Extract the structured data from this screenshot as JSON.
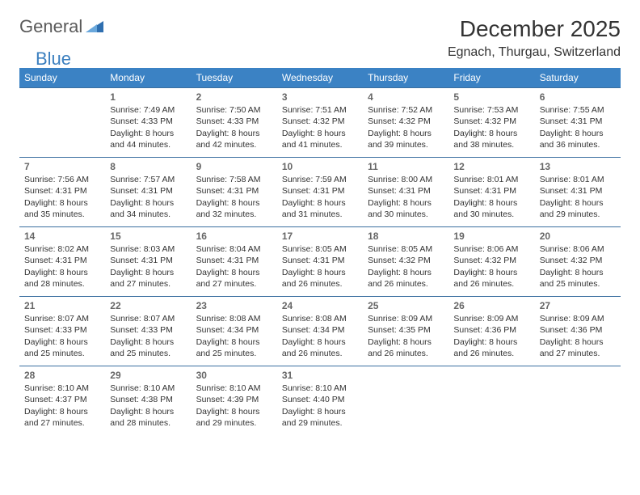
{
  "logo": {
    "part1": "General",
    "part2": "Blue"
  },
  "title": "December 2025",
  "location": "Egnach, Thurgau, Switzerland",
  "colors": {
    "header_bg": "#3b82c4",
    "header_text": "#ffffff",
    "cell_border": "#3b6fa0",
    "daynum_color": "#666666",
    "text_color": "#333333",
    "logo_gray": "#5a5a5a",
    "logo_blue": "#3b7fbf",
    "background": "#ffffff"
  },
  "typography": {
    "title_fontsize": 28,
    "location_fontsize": 16,
    "dayheader_fontsize": 12,
    "cell_fontsize": 10.5,
    "daynum_fontsize": 12
  },
  "day_headers": [
    "Sunday",
    "Monday",
    "Tuesday",
    "Wednesday",
    "Thursday",
    "Friday",
    "Saturday"
  ],
  "weeks": [
    [
      {},
      {
        "n": "1",
        "sr": "Sunrise: 7:49 AM",
        "ss": "Sunset: 4:33 PM",
        "d1": "Daylight: 8 hours",
        "d2": "and 44 minutes."
      },
      {
        "n": "2",
        "sr": "Sunrise: 7:50 AM",
        "ss": "Sunset: 4:33 PM",
        "d1": "Daylight: 8 hours",
        "d2": "and 42 minutes."
      },
      {
        "n": "3",
        "sr": "Sunrise: 7:51 AM",
        "ss": "Sunset: 4:32 PM",
        "d1": "Daylight: 8 hours",
        "d2": "and 41 minutes."
      },
      {
        "n": "4",
        "sr": "Sunrise: 7:52 AM",
        "ss": "Sunset: 4:32 PM",
        "d1": "Daylight: 8 hours",
        "d2": "and 39 minutes."
      },
      {
        "n": "5",
        "sr": "Sunrise: 7:53 AM",
        "ss": "Sunset: 4:32 PM",
        "d1": "Daylight: 8 hours",
        "d2": "and 38 minutes."
      },
      {
        "n": "6",
        "sr": "Sunrise: 7:55 AM",
        "ss": "Sunset: 4:31 PM",
        "d1": "Daylight: 8 hours",
        "d2": "and 36 minutes."
      }
    ],
    [
      {
        "n": "7",
        "sr": "Sunrise: 7:56 AM",
        "ss": "Sunset: 4:31 PM",
        "d1": "Daylight: 8 hours",
        "d2": "and 35 minutes."
      },
      {
        "n": "8",
        "sr": "Sunrise: 7:57 AM",
        "ss": "Sunset: 4:31 PM",
        "d1": "Daylight: 8 hours",
        "d2": "and 34 minutes."
      },
      {
        "n": "9",
        "sr": "Sunrise: 7:58 AM",
        "ss": "Sunset: 4:31 PM",
        "d1": "Daylight: 8 hours",
        "d2": "and 32 minutes."
      },
      {
        "n": "10",
        "sr": "Sunrise: 7:59 AM",
        "ss": "Sunset: 4:31 PM",
        "d1": "Daylight: 8 hours",
        "d2": "and 31 minutes."
      },
      {
        "n": "11",
        "sr": "Sunrise: 8:00 AM",
        "ss": "Sunset: 4:31 PM",
        "d1": "Daylight: 8 hours",
        "d2": "and 30 minutes."
      },
      {
        "n": "12",
        "sr": "Sunrise: 8:01 AM",
        "ss": "Sunset: 4:31 PM",
        "d1": "Daylight: 8 hours",
        "d2": "and 30 minutes."
      },
      {
        "n": "13",
        "sr": "Sunrise: 8:01 AM",
        "ss": "Sunset: 4:31 PM",
        "d1": "Daylight: 8 hours",
        "d2": "and 29 minutes."
      }
    ],
    [
      {
        "n": "14",
        "sr": "Sunrise: 8:02 AM",
        "ss": "Sunset: 4:31 PM",
        "d1": "Daylight: 8 hours",
        "d2": "and 28 minutes."
      },
      {
        "n": "15",
        "sr": "Sunrise: 8:03 AM",
        "ss": "Sunset: 4:31 PM",
        "d1": "Daylight: 8 hours",
        "d2": "and 27 minutes."
      },
      {
        "n": "16",
        "sr": "Sunrise: 8:04 AM",
        "ss": "Sunset: 4:31 PM",
        "d1": "Daylight: 8 hours",
        "d2": "and 27 minutes."
      },
      {
        "n": "17",
        "sr": "Sunrise: 8:05 AM",
        "ss": "Sunset: 4:31 PM",
        "d1": "Daylight: 8 hours",
        "d2": "and 26 minutes."
      },
      {
        "n": "18",
        "sr": "Sunrise: 8:05 AM",
        "ss": "Sunset: 4:32 PM",
        "d1": "Daylight: 8 hours",
        "d2": "and 26 minutes."
      },
      {
        "n": "19",
        "sr": "Sunrise: 8:06 AM",
        "ss": "Sunset: 4:32 PM",
        "d1": "Daylight: 8 hours",
        "d2": "and 26 minutes."
      },
      {
        "n": "20",
        "sr": "Sunrise: 8:06 AM",
        "ss": "Sunset: 4:32 PM",
        "d1": "Daylight: 8 hours",
        "d2": "and 25 minutes."
      }
    ],
    [
      {
        "n": "21",
        "sr": "Sunrise: 8:07 AM",
        "ss": "Sunset: 4:33 PM",
        "d1": "Daylight: 8 hours",
        "d2": "and 25 minutes."
      },
      {
        "n": "22",
        "sr": "Sunrise: 8:07 AM",
        "ss": "Sunset: 4:33 PM",
        "d1": "Daylight: 8 hours",
        "d2": "and 25 minutes."
      },
      {
        "n": "23",
        "sr": "Sunrise: 8:08 AM",
        "ss": "Sunset: 4:34 PM",
        "d1": "Daylight: 8 hours",
        "d2": "and 25 minutes."
      },
      {
        "n": "24",
        "sr": "Sunrise: 8:08 AM",
        "ss": "Sunset: 4:34 PM",
        "d1": "Daylight: 8 hours",
        "d2": "and 26 minutes."
      },
      {
        "n": "25",
        "sr": "Sunrise: 8:09 AM",
        "ss": "Sunset: 4:35 PM",
        "d1": "Daylight: 8 hours",
        "d2": "and 26 minutes."
      },
      {
        "n": "26",
        "sr": "Sunrise: 8:09 AM",
        "ss": "Sunset: 4:36 PM",
        "d1": "Daylight: 8 hours",
        "d2": "and 26 minutes."
      },
      {
        "n": "27",
        "sr": "Sunrise: 8:09 AM",
        "ss": "Sunset: 4:36 PM",
        "d1": "Daylight: 8 hours",
        "d2": "and 27 minutes."
      }
    ],
    [
      {
        "n": "28",
        "sr": "Sunrise: 8:10 AM",
        "ss": "Sunset: 4:37 PM",
        "d1": "Daylight: 8 hours",
        "d2": "and 27 minutes."
      },
      {
        "n": "29",
        "sr": "Sunrise: 8:10 AM",
        "ss": "Sunset: 4:38 PM",
        "d1": "Daylight: 8 hours",
        "d2": "and 28 minutes."
      },
      {
        "n": "30",
        "sr": "Sunrise: 8:10 AM",
        "ss": "Sunset: 4:39 PM",
        "d1": "Daylight: 8 hours",
        "d2": "and 29 minutes."
      },
      {
        "n": "31",
        "sr": "Sunrise: 8:10 AM",
        "ss": "Sunset: 4:40 PM",
        "d1": "Daylight: 8 hours",
        "d2": "and 29 minutes."
      },
      {},
      {},
      {}
    ]
  ]
}
